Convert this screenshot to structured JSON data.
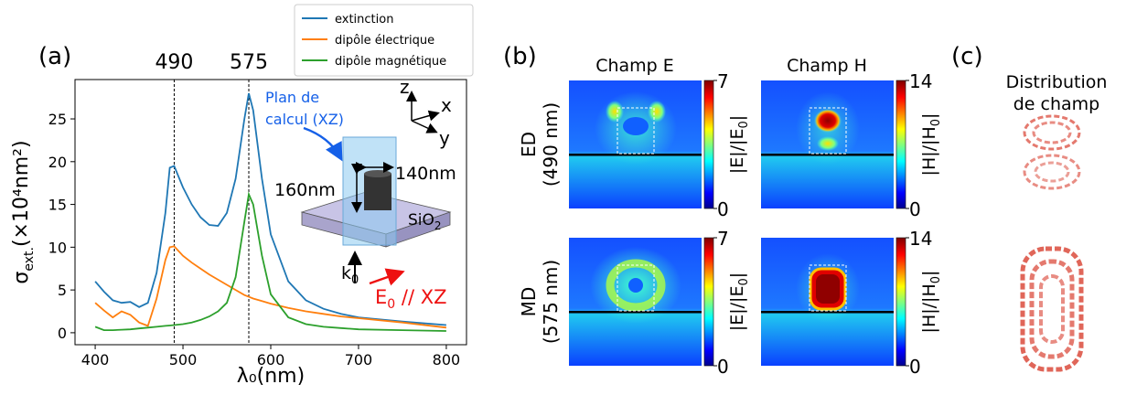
{
  "chart_data": {
    "type": "line",
    "panel_label": "(a)",
    "x_label": "λ₀(nm)",
    "y_label": [
      "σ",
      "ext.",
      "(×10⁴nm²)"
    ],
    "x": [
      400,
      410,
      420,
      430,
      440,
      450,
      460,
      470,
      480,
      485,
      490,
      500,
      510,
      520,
      530,
      540,
      550,
      560,
      570,
      575,
      580,
      590,
      600,
      620,
      640,
      660,
      680,
      700,
      750,
      800
    ],
    "series": [
      {
        "name": "extinction",
        "color": "#1f77b4",
        "values": [
          6.0,
          4.8,
          3.8,
          3.5,
          3.6,
          3.0,
          3.5,
          7.0,
          14.0,
          19.3,
          19.5,
          17.0,
          15.0,
          13.5,
          12.6,
          12.5,
          14.0,
          18.0,
          25.0,
          28.0,
          26.0,
          18.0,
          11.5,
          6.0,
          3.8,
          2.8,
          2.2,
          1.8,
          1.3,
          0.9
        ]
      },
      {
        "name": "dipôle électrique",
        "color": "#ff7f0e",
        "values": [
          3.5,
          2.6,
          1.8,
          2.5,
          2.1,
          1.2,
          0.8,
          4.0,
          8.5,
          10.0,
          10.1,
          9.0,
          8.2,
          7.5,
          6.8,
          6.2,
          5.6,
          5.0,
          4.4,
          4.2,
          4.0,
          3.7,
          3.4,
          2.9,
          2.5,
          2.2,
          1.9,
          1.7,
          1.2,
          0.6
        ]
      },
      {
        "name": "dipôle magnétique",
        "color": "#2ca02c",
        "values": [
          0.7,
          0.3,
          0.3,
          0.35,
          0.4,
          0.5,
          0.6,
          0.7,
          0.8,
          0.85,
          0.9,
          1.0,
          1.2,
          1.5,
          1.9,
          2.5,
          3.5,
          6.5,
          13.0,
          16.2,
          15.0,
          9.0,
          4.5,
          1.8,
          1.0,
          0.7,
          0.55,
          0.4,
          0.3,
          0.2
        ]
      }
    ],
    "xlim": [
      377,
      823
    ],
    "ylim": [
      -1.4,
      29.6
    ],
    "xticks": [
      400,
      500,
      600,
      700,
      800
    ],
    "yticks": [
      0,
      5,
      10,
      15,
      20,
      25
    ],
    "vlines": [
      490,
      575
    ],
    "legend": "upper right",
    "grid": false,
    "annotations": {
      "plane": [
        "Plan de",
        "calcul (XZ)"
      ],
      "axes": [
        "z",
        "x",
        "y"
      ],
      "height": "160nm",
      "diameter": "140nm",
      "substrate": [
        "SiO",
        "2"
      ],
      "k": [
        "k",
        "0"
      ],
      "E": [
        "E",
        "0",
        " // XZ"
      ]
    }
  },
  "panel_b": {
    "label": "(b)",
    "columns": [
      "Champ E",
      "Champ H"
    ],
    "rows": [
      [
        "ED",
        "(490 nm)"
      ],
      [
        "MD",
        "(575 nm)"
      ]
    ],
    "colorbars": [
      {
        "label": [
          "|E|/|E",
          "0",
          "|"
        ],
        "lim": [
          0,
          7
        ],
        "ticks": [
          0,
          7
        ]
      },
      {
        "label": [
          "|H|/|H",
          "0",
          "|"
        ],
        "lim": [
          0,
          14
        ],
        "ticks": [
          0,
          14
        ]
      }
    ]
  },
  "panel_c": {
    "label": "(c)",
    "title": [
      "Distribution",
      "de champ"
    ]
  }
}
